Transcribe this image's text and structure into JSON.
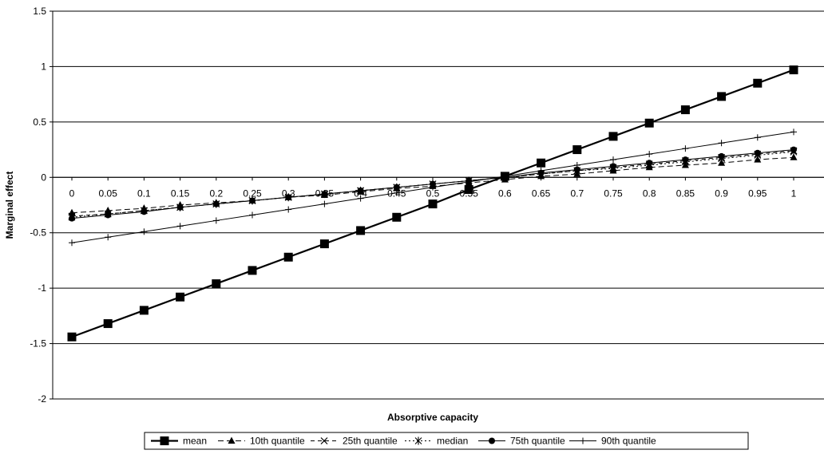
{
  "chart_data": {
    "type": "line",
    "title": "",
    "xlabel": "Absorptive capacity",
    "ylabel": "Marginal effect",
    "ylim": [
      -2,
      1.5
    ],
    "yticks": [
      "1.5",
      "1",
      "0.5",
      "0",
      "-0.5",
      "-1",
      "-1.5",
      "-2"
    ],
    "categories": [
      "0",
      "0.05",
      "0.1",
      "0.15",
      "0.2",
      "0.25",
      "0.3",
      "0.35",
      "0.4",
      "0.45",
      "0.5",
      "0.55",
      "0.6",
      "0.65",
      "0.7",
      "0.75",
      "0.8",
      "0.85",
      "0.9",
      "0.95",
      "1"
    ],
    "grid": true,
    "legend_position": "bottom",
    "series": [
      {
        "name": "mean",
        "marker": "square",
        "dash": "solid",
        "width": 2.2,
        "values": [
          -1.44,
          -1.32,
          -1.2,
          -1.08,
          -0.96,
          -0.84,
          -0.72,
          -0.6,
          -0.48,
          -0.36,
          -0.24,
          -0.11,
          0.01,
          0.13,
          0.25,
          0.37,
          0.49,
          0.61,
          0.73,
          0.85,
          0.97
        ]
      },
      {
        "name": "10th quantile",
        "marker": "triangle",
        "dash": "long",
        "width": 1,
        "values": [
          -0.32,
          -0.3,
          -0.28,
          -0.25,
          -0.23,
          -0.21,
          -0.18,
          -0.16,
          -0.13,
          -0.1,
          -0.08,
          -0.05,
          -0.02,
          0.01,
          0.03,
          0.06,
          0.09,
          0.11,
          0.13,
          0.16,
          0.18
        ]
      },
      {
        "name": "25th quantile",
        "marker": "x",
        "dash": "medium",
        "width": 1,
        "values": [
          -0.35,
          -0.33,
          -0.3,
          -0.27,
          -0.24,
          -0.21,
          -0.18,
          -0.15,
          -0.12,
          -0.09,
          -0.06,
          -0.03,
          0.0,
          0.03,
          0.06,
          0.09,
          0.12,
          0.15,
          0.18,
          0.21,
          0.24
        ]
      },
      {
        "name": "median",
        "marker": "asterisk",
        "dash": "dotted",
        "width": 1,
        "values": [
          -0.36,
          -0.33,
          -0.3,
          -0.27,
          -0.24,
          -0.21,
          -0.18,
          -0.15,
          -0.12,
          -0.09,
          -0.06,
          -0.03,
          0.0,
          0.03,
          0.06,
          0.08,
          0.11,
          0.14,
          0.17,
          0.2,
          0.23
        ]
      },
      {
        "name": "75th quantile",
        "marker": "circle",
        "dash": "solid",
        "width": 1,
        "values": [
          -0.37,
          -0.34,
          -0.31,
          -0.27,
          -0.24,
          -0.21,
          -0.18,
          -0.15,
          -0.12,
          -0.09,
          -0.06,
          -0.03,
          0.0,
          0.04,
          0.07,
          0.1,
          0.13,
          0.16,
          0.19,
          0.22,
          0.25
        ]
      },
      {
        "name": "90th quantile",
        "marker": "plus",
        "dash": "solid",
        "width": 1,
        "values": [
          -0.59,
          -0.54,
          -0.49,
          -0.44,
          -0.39,
          -0.34,
          -0.29,
          -0.24,
          -0.19,
          -0.14,
          -0.09,
          -0.04,
          0.01,
          0.06,
          0.11,
          0.16,
          0.21,
          0.26,
          0.31,
          0.36,
          0.41
        ]
      }
    ]
  }
}
